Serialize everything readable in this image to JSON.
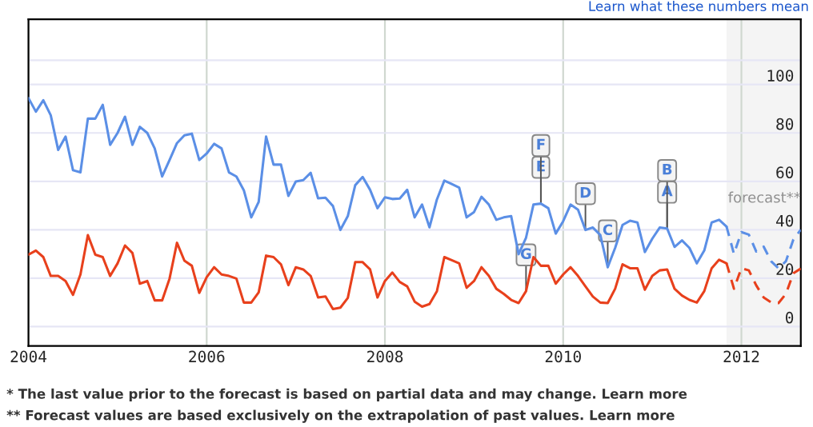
{
  "chart_data": {
    "type": "line",
    "x": [
      "2004-01",
      "2004-02",
      "2004-03",
      "2004-04",
      "2004-05",
      "2004-06",
      "2004-07",
      "2004-08",
      "2004-09",
      "2004-10",
      "2004-11",
      "2004-12",
      "2005-01",
      "2005-02",
      "2005-03",
      "2005-04",
      "2005-05",
      "2005-06",
      "2005-07",
      "2005-08",
      "2005-09",
      "2005-10",
      "2005-11",
      "2005-12",
      "2006-01",
      "2006-02",
      "2006-03",
      "2006-04",
      "2006-05",
      "2006-06",
      "2006-07",
      "2006-08",
      "2006-09",
      "2006-10",
      "2006-11",
      "2006-12",
      "2007-01",
      "2007-02",
      "2007-03",
      "2007-04",
      "2007-05",
      "2007-06",
      "2007-07",
      "2007-08",
      "2007-09",
      "2007-10",
      "2007-11",
      "2007-12",
      "2008-01",
      "2008-02",
      "2008-03",
      "2008-04",
      "2008-05",
      "2008-06",
      "2008-07",
      "2008-08",
      "2008-09",
      "2008-10",
      "2008-11",
      "2008-12",
      "2009-01",
      "2009-02",
      "2009-03",
      "2009-04",
      "2009-05",
      "2009-06",
      "2009-07",
      "2009-08",
      "2009-09",
      "2009-10",
      "2009-11",
      "2009-12",
      "2010-01",
      "2010-02",
      "2010-03",
      "2010-04",
      "2010-05",
      "2010-06",
      "2010-07",
      "2010-08",
      "2010-09",
      "2010-10",
      "2010-11",
      "2010-12",
      "2011-01",
      "2011-02",
      "2011-03",
      "2011-04",
      "2011-05",
      "2011-06",
      "2011-07",
      "2011-08",
      "2011-09",
      "2011-10",
      "2011-11"
    ],
    "series": [
      {
        "color": "#5b8fe6",
        "values": [
          94.4,
          88.8,
          93.5,
          87.3,
          73,
          78.5,
          64.6,
          63.7,
          85.9,
          85.9,
          91.6,
          75.1,
          80,
          86.7,
          75.1,
          82.5,
          80,
          73.6,
          62,
          68.8,
          75.8,
          79,
          79.7,
          68.8,
          71.5,
          75.5,
          73.6,
          63.7,
          62,
          56.3,
          45.1,
          51.5,
          78.5,
          66.9,
          66.9,
          54,
          59.9,
          60.5,
          63.5,
          53,
          53.2,
          49.8,
          39.9,
          45.6,
          58.4,
          61.8,
          56.5,
          48.9,
          53.4,
          52.7,
          52.9,
          56.5,
          45.1,
          50.4,
          41,
          52.5,
          60.3,
          58.9,
          57.4,
          45.1,
          47.3,
          53.6,
          50.4,
          44.1,
          45.1,
          45.6,
          29.9,
          36.7,
          50.4,
          50.8,
          48.9,
          38.4,
          43.5,
          50.4,
          48.3,
          39.9,
          40.9,
          37.8,
          24.5,
          32.5,
          42,
          43.7,
          43,
          30.8,
          36.3,
          40.9,
          40.5,
          32.9,
          35.6,
          32.5,
          26.1,
          31.4,
          43,
          44.1,
          41.3
        ]
      },
      {
        "color": "#e8401c",
        "values": [
          29.7,
          31.4,
          28.7,
          20.9,
          20.9,
          18.8,
          13.1,
          21.5,
          37.8,
          29.7,
          28.7,
          20.9,
          26.1,
          33.5,
          30.4,
          17.7,
          18.8,
          10.8,
          10.8,
          19.8,
          34.6,
          27.2,
          25.1,
          13.9,
          20.4,
          24.5,
          21.5,
          20.9,
          19.8,
          9.9,
          9.9,
          14.1,
          29.3,
          28.7,
          25.7,
          17.1,
          24.5,
          23.6,
          20.9,
          12,
          12.4,
          7.2,
          7.8,
          11.8,
          26.6,
          26.6,
          23.6,
          12,
          18.8,
          22.3,
          18.4,
          16.6,
          10.3,
          8.2,
          9.3,
          14.6,
          28.7,
          27.4,
          26.1,
          16,
          18.8,
          24.5,
          20.9,
          15.6,
          13.5,
          11,
          9.7,
          14.6,
          28.7,
          25.1,
          25.1,
          17.7,
          21.5,
          24.5,
          20.9,
          16.6,
          12.4,
          9.9,
          9.7,
          15.6,
          25.7,
          24.1,
          24.1,
          15.2,
          20.9,
          23.2,
          23.6,
          15.6,
          12.8,
          11,
          9.9,
          14.6,
          24.1,
          27.6,
          26.1
        ]
      },
      {
        "color": "#5b8fe6",
        "line_style": "dashed",
        "x": [
          "2011-11",
          "2011-12",
          "2012-01",
          "2012-02",
          "2012-03",
          "2012-04",
          "2012-05",
          "2012-06",
          "2012-07",
          "2012-08",
          "2012-09"
        ],
        "values": [
          41.3,
          30,
          39,
          38,
          31,
          33,
          27,
          24,
          27,
          36,
          40
        ]
      },
      {
        "color": "#e8401c",
        "line_style": "dashed",
        "x": [
          "2011-11",
          "2011-12",
          "2012-01",
          "2012-02",
          "2012-03",
          "2012-04",
          "2012-05",
          "2012-06",
          "2012-07",
          "2012-08",
          "2012-09"
        ],
        "values": [
          26.1,
          15.6,
          24.1,
          23.2,
          17,
          12,
          10,
          9.7,
          13.5,
          22,
          24
        ]
      }
    ],
    "xlim": [
      "2004-01",
      "2012-09"
    ],
    "xticks": [
      {
        "value": "2004",
        "label": "2004"
      },
      {
        "value": "2006",
        "label": "2006"
      },
      {
        "value": "2008",
        "label": "2008"
      },
      {
        "value": "2010",
        "label": "2010"
      },
      {
        "value": "2012",
        "label": "2012"
      }
    ],
    "ylim": [
      -8,
      127
    ],
    "yticks": [
      0,
      20,
      40,
      60,
      80,
      100,
      {
        "value": 110,
        "label": null
      }
    ],
    "grid": true,
    "bands": [
      {
        "axis": "x",
        "from": "2011-11",
        "to": "2012-09",
        "label": "forecast**",
        "color": "#f4f4f4"
      }
    ],
    "annotations": [
      {
        "text": "E",
        "x": "2009-10",
        "y": 50.8
      },
      {
        "text": "F",
        "x": "2009-10",
        "y": 50.8
      },
      {
        "text": "G",
        "x": "2009-08",
        "y": 14.6
      },
      {
        "text": "D",
        "x": "2010-04",
        "y": 39.9
      },
      {
        "text": "C",
        "x": "2010-07",
        "y": 24.5
      },
      {
        "text": "A",
        "x": "2011-03",
        "y": 40.5
      },
      {
        "text": "B",
        "x": "2011-03",
        "y": 40.5
      },
      "Learn what these numbers mean",
      "* The last value prior to the forecast is based on partial data and may change. Learn more",
      "** Forecast values are based exclusively on the extrapolation of past values. Learn more"
    ]
  }
}
